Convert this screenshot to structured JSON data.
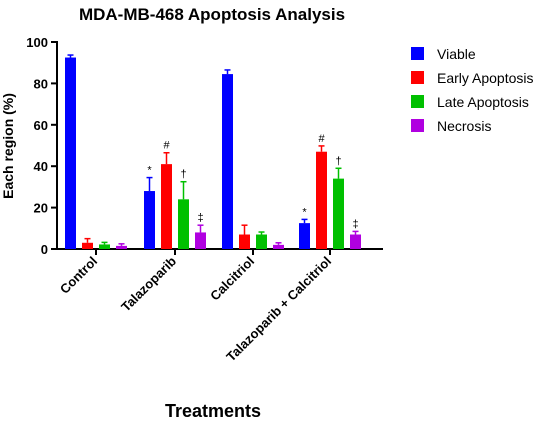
{
  "chart_data": {
    "type": "bar",
    "title": "MDA-MB-468 Apoptosis Analysis",
    "xlabel": "Treatments",
    "ylabel": "Each region (%)",
    "ylim": [
      0,
      100
    ],
    "yticks": [
      "0",
      "20",
      "40",
      "60",
      "80",
      "100"
    ],
    "categories": [
      "Control",
      "Talazoparib",
      "Calcitriol",
      "Talazoparib + Calcitriol"
    ],
    "legend_position": "right",
    "series": [
      {
        "name": "Viable",
        "color": "#0000ff",
        "values": [
          92.5,
          28,
          84.5,
          12.5
        ],
        "errors": [
          1.2,
          6.5,
          2,
          1.8
        ],
        "annotations": [
          "",
          "*",
          "",
          "*"
        ]
      },
      {
        "name": "Early Apoptosis",
        "color": "#ff0000",
        "values": [
          3,
          41,
          7,
          47
        ],
        "errors": [
          2,
          5.5,
          4.5,
          2.8
        ],
        "annotations": [
          "",
          "#",
          "",
          "#"
        ]
      },
      {
        "name": "Late Apoptosis",
        "color": "#00c000",
        "values": [
          2.2,
          24,
          7,
          34
        ],
        "errors": [
          1,
          8.5,
          1.2,
          5
        ],
        "annotations": [
          "",
          "†",
          "",
          "†"
        ]
      },
      {
        "name": "Necrosis",
        "color": "#b000e0",
        "values": [
          1.5,
          8,
          2,
          7
        ],
        "errors": [
          1,
          3.5,
          1,
          1.5
        ],
        "annotations": [
          "",
          "‡",
          "",
          "‡"
        ]
      }
    ]
  }
}
